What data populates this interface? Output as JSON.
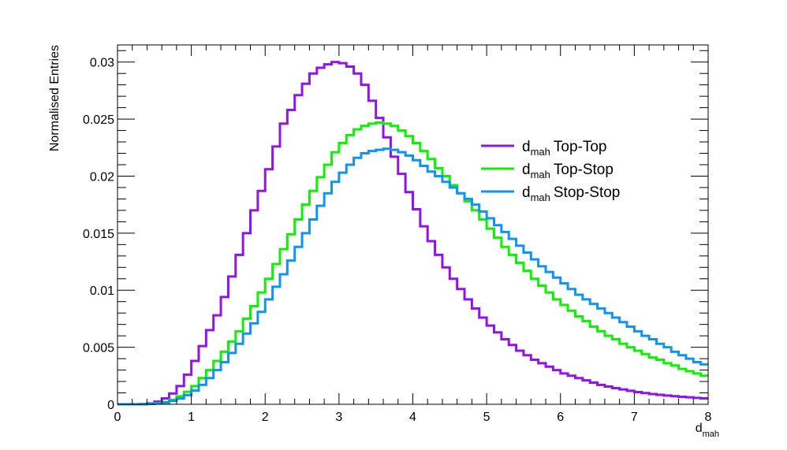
{
  "chart_data": {
    "type": "line",
    "style": "step-histogram",
    "title": "",
    "xlabel": {
      "main": "d",
      "sub": "mah"
    },
    "ylabel": "Normalised Entries",
    "xlim": [
      0,
      8
    ],
    "ylim": [
      0,
      0.0315
    ],
    "x_ticks": [
      0,
      1,
      2,
      3,
      4,
      5,
      6,
      7,
      8
    ],
    "x_tick_labels": [
      "0",
      "1",
      "2",
      "3",
      "4",
      "5",
      "6",
      "7",
      "8"
    ],
    "y_ticks": [
      0,
      0.005,
      0.01,
      0.015,
      0.02,
      0.025,
      0.03
    ],
    "y_tick_labels": [
      "0",
      "0.005",
      "0.01",
      "0.015",
      "0.02",
      "0.025",
      "0.03"
    ],
    "grid": false,
    "legend_position": "upper-right",
    "bin_width": 0.1,
    "series": [
      {
        "name": "Top-Top",
        "label_main": "d",
        "label_sub": "mah",
        "label_rest": "Top-Top",
        "color": "#9112ed",
        "values": [
          0.0,
          0.0,
          0.0,
          2e-05,
          8e-05,
          0.00023,
          0.00052,
          0.00095,
          0.0016,
          0.0026,
          0.0038,
          0.0051,
          0.0065,
          0.0078,
          0.0094,
          0.0112,
          0.0131,
          0.015,
          0.017,
          0.0187,
          0.0206,
          0.0226,
          0.0246,
          0.0258,
          0.0271,
          0.0281,
          0.029,
          0.0295,
          0.0298,
          0.03,
          0.0299,
          0.0296,
          0.029,
          0.028,
          0.0266,
          0.0251,
          0.0234,
          0.0217,
          0.0202,
          0.0186,
          0.0171,
          0.0156,
          0.0143,
          0.0131,
          0.012,
          0.011,
          0.0101,
          0.0092,
          0.0084,
          0.0076,
          0.0069,
          0.0063,
          0.0057,
          0.0052,
          0.0047,
          0.0043,
          0.0039,
          0.0036,
          0.0033,
          0.003,
          0.0027,
          0.0025,
          0.0023,
          0.0021,
          0.0019,
          0.0017,
          0.00155,
          0.00142,
          0.0013,
          0.00118,
          0.00107,
          0.00098,
          0.0009,
          0.00083,
          0.00077,
          0.00071,
          0.00066,
          0.00061,
          0.00056,
          0.00052
        ]
      },
      {
        "name": "Top-Stop",
        "label_main": "d",
        "label_sub": "mah",
        "label_rest": "Top-Stop",
        "color": "#0bf300",
        "values": [
          0.0,
          0.0,
          0.0,
          1e-05,
          4e-05,
          0.0001,
          0.0002,
          0.0004,
          0.0007,
          0.0011,
          0.0016,
          0.0023,
          0.003,
          0.0038,
          0.0046,
          0.0055,
          0.0064,
          0.0075,
          0.0086,
          0.0098,
          0.011,
          0.0123,
          0.0136,
          0.0149,
          0.0162,
          0.0175,
          0.0187,
          0.0199,
          0.021,
          0.0221,
          0.0229,
          0.0236,
          0.0241,
          0.0244,
          0.0246,
          0.0247,
          0.0246,
          0.0244,
          0.024,
          0.0235,
          0.0229,
          0.0222,
          0.0215,
          0.0207,
          0.02,
          0.0192,
          0.0185,
          0.0178,
          0.017,
          0.0162,
          0.0154,
          0.0146,
          0.0138,
          0.0131,
          0.0124,
          0.0117,
          0.011,
          0.0104,
          0.0098,
          0.0092,
          0.0087,
          0.0082,
          0.0077,
          0.0073,
          0.0068,
          0.0064,
          0.006,
          0.0057,
          0.0053,
          0.005,
          0.0047,
          0.0044,
          0.0041,
          0.0039,
          0.0036,
          0.0034,
          0.0031,
          0.0029,
          0.0027,
          0.0025
        ]
      },
      {
        "name": "Stop-Stop",
        "label_main": "d",
        "label_sub": "mah",
        "label_rest": "Stop-Stop",
        "color": "#0e94f5",
        "values": [
          0.0,
          0.0,
          0.0,
          0.0,
          3e-05,
          7e-05,
          0.00015,
          0.0003,
          0.0005,
          0.0008,
          0.0012,
          0.0017,
          0.0023,
          0.003,
          0.0037,
          0.0045,
          0.0053,
          0.0062,
          0.0071,
          0.0081,
          0.0092,
          0.0103,
          0.0114,
          0.0126,
          0.0138,
          0.015,
          0.0162,
          0.0174,
          0.0185,
          0.0195,
          0.0203,
          0.021,
          0.0216,
          0.022,
          0.0222,
          0.0223,
          0.0224,
          0.0223,
          0.0221,
          0.0218,
          0.0214,
          0.0209,
          0.0204,
          0.02,
          0.0195,
          0.019,
          0.0185,
          0.018,
          0.0175,
          0.0169,
          0.0163,
          0.0157,
          0.0151,
          0.0145,
          0.0139,
          0.0133,
          0.0127,
          0.0121,
          0.0116,
          0.0111,
          0.0106,
          0.0101,
          0.0096,
          0.0092,
          0.0088,
          0.0084,
          0.008,
          0.0076,
          0.0072,
          0.0068,
          0.0064,
          0.006,
          0.0057,
          0.0053,
          0.005,
          0.0046,
          0.0043,
          0.004,
          0.0037,
          0.0035
        ]
      }
    ]
  }
}
